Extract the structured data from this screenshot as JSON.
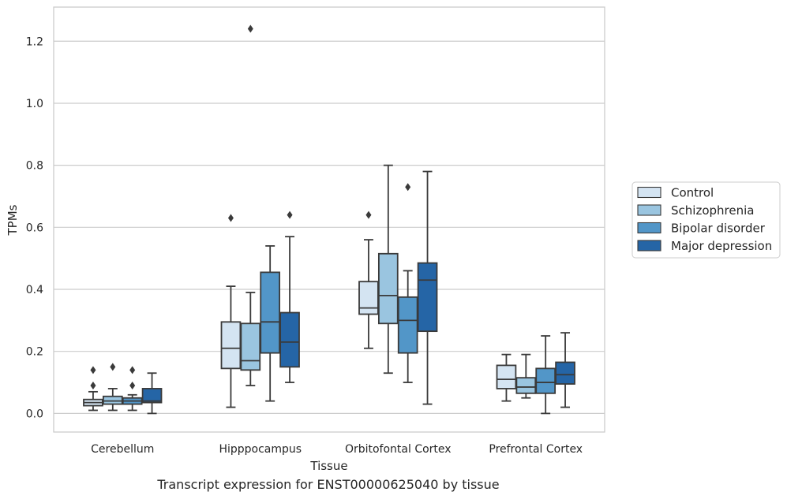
{
  "caption": "Transcript expression for ENST00000625040 by tissue",
  "chart_data": {
    "type": "box",
    "title": "",
    "xlabel": "Tissue",
    "ylabel": "TPMs",
    "ylim": [
      -0.06,
      1.31
    ],
    "yticks": [
      0.0,
      0.2,
      0.4,
      0.6,
      0.8,
      1.0,
      1.2
    ],
    "ytick_labels": [
      "0.0",
      "0.2",
      "0.4",
      "0.6",
      "0.8",
      "1.0",
      "1.2"
    ],
    "grid": "horizontal",
    "legend_position": "right",
    "categories": [
      "Cerebellum",
      "Hipppocampus",
      "Orbitofontal Cortex",
      "Prefrontal Cortex"
    ],
    "series": [
      {
        "name": "Control",
        "color": "#d4e4f2",
        "boxes": [
          {
            "whislo": 0.01,
            "q1": 0.025,
            "med": 0.035,
            "q3": 0.045,
            "whishi": 0.07,
            "fliers": [
              0.09,
              0.14
            ]
          },
          {
            "whislo": 0.02,
            "q1": 0.145,
            "med": 0.21,
            "q3": 0.295,
            "whishi": 0.41,
            "fliers": [
              0.63
            ]
          },
          {
            "whislo": 0.21,
            "q1": 0.32,
            "med": 0.34,
            "q3": 0.425,
            "whishi": 0.56,
            "fliers": [
              0.64
            ]
          },
          {
            "whislo": 0.04,
            "q1": 0.08,
            "med": 0.11,
            "q3": 0.155,
            "whishi": 0.19,
            "fliers": []
          }
        ]
      },
      {
        "name": "Schizophrenia",
        "color": "#9ac5e0",
        "boxes": [
          {
            "whislo": 0.01,
            "q1": 0.03,
            "med": 0.04,
            "q3": 0.055,
            "whishi": 0.08,
            "fliers": [
              0.15
            ]
          },
          {
            "whislo": 0.09,
            "q1": 0.14,
            "med": 0.17,
            "q3": 0.29,
            "whishi": 0.39,
            "fliers": [
              1.24
            ]
          },
          {
            "whislo": 0.13,
            "q1": 0.29,
            "med": 0.38,
            "q3": 0.515,
            "whishi": 0.8,
            "fliers": []
          },
          {
            "whislo": 0.05,
            "q1": 0.065,
            "med": 0.085,
            "q3": 0.115,
            "whishi": 0.19,
            "fliers": []
          }
        ]
      },
      {
        "name": "Bipolar disorder",
        "color": "#5296c8",
        "boxes": [
          {
            "whislo": 0.01,
            "q1": 0.03,
            "med": 0.04,
            "q3": 0.05,
            "whishi": 0.06,
            "fliers": [
              0.09,
              0.14
            ]
          },
          {
            "whislo": 0.04,
            "q1": 0.195,
            "med": 0.295,
            "q3": 0.455,
            "whishi": 0.54,
            "fliers": []
          },
          {
            "whislo": 0.1,
            "q1": 0.195,
            "med": 0.3,
            "q3": 0.375,
            "whishi": 0.46,
            "fliers": [
              0.73
            ]
          },
          {
            "whislo": 0.0,
            "q1": 0.065,
            "med": 0.1,
            "q3": 0.145,
            "whishi": 0.25,
            "fliers": []
          }
        ]
      },
      {
        "name": "Major depression",
        "color": "#2565a6",
        "boxes": [
          {
            "whislo": 0.0,
            "q1": 0.035,
            "med": 0.04,
            "q3": 0.08,
            "whishi": 0.13,
            "fliers": []
          },
          {
            "whislo": 0.1,
            "q1": 0.15,
            "med": 0.23,
            "q3": 0.325,
            "whishi": 0.57,
            "fliers": [
              0.64
            ]
          },
          {
            "whislo": 0.03,
            "q1": 0.265,
            "med": 0.43,
            "q3": 0.485,
            "whishi": 0.78,
            "fliers": []
          },
          {
            "whislo": 0.02,
            "q1": 0.095,
            "med": 0.125,
            "q3": 0.165,
            "whishi": 0.26,
            "fliers": []
          }
        ]
      }
    ]
  }
}
